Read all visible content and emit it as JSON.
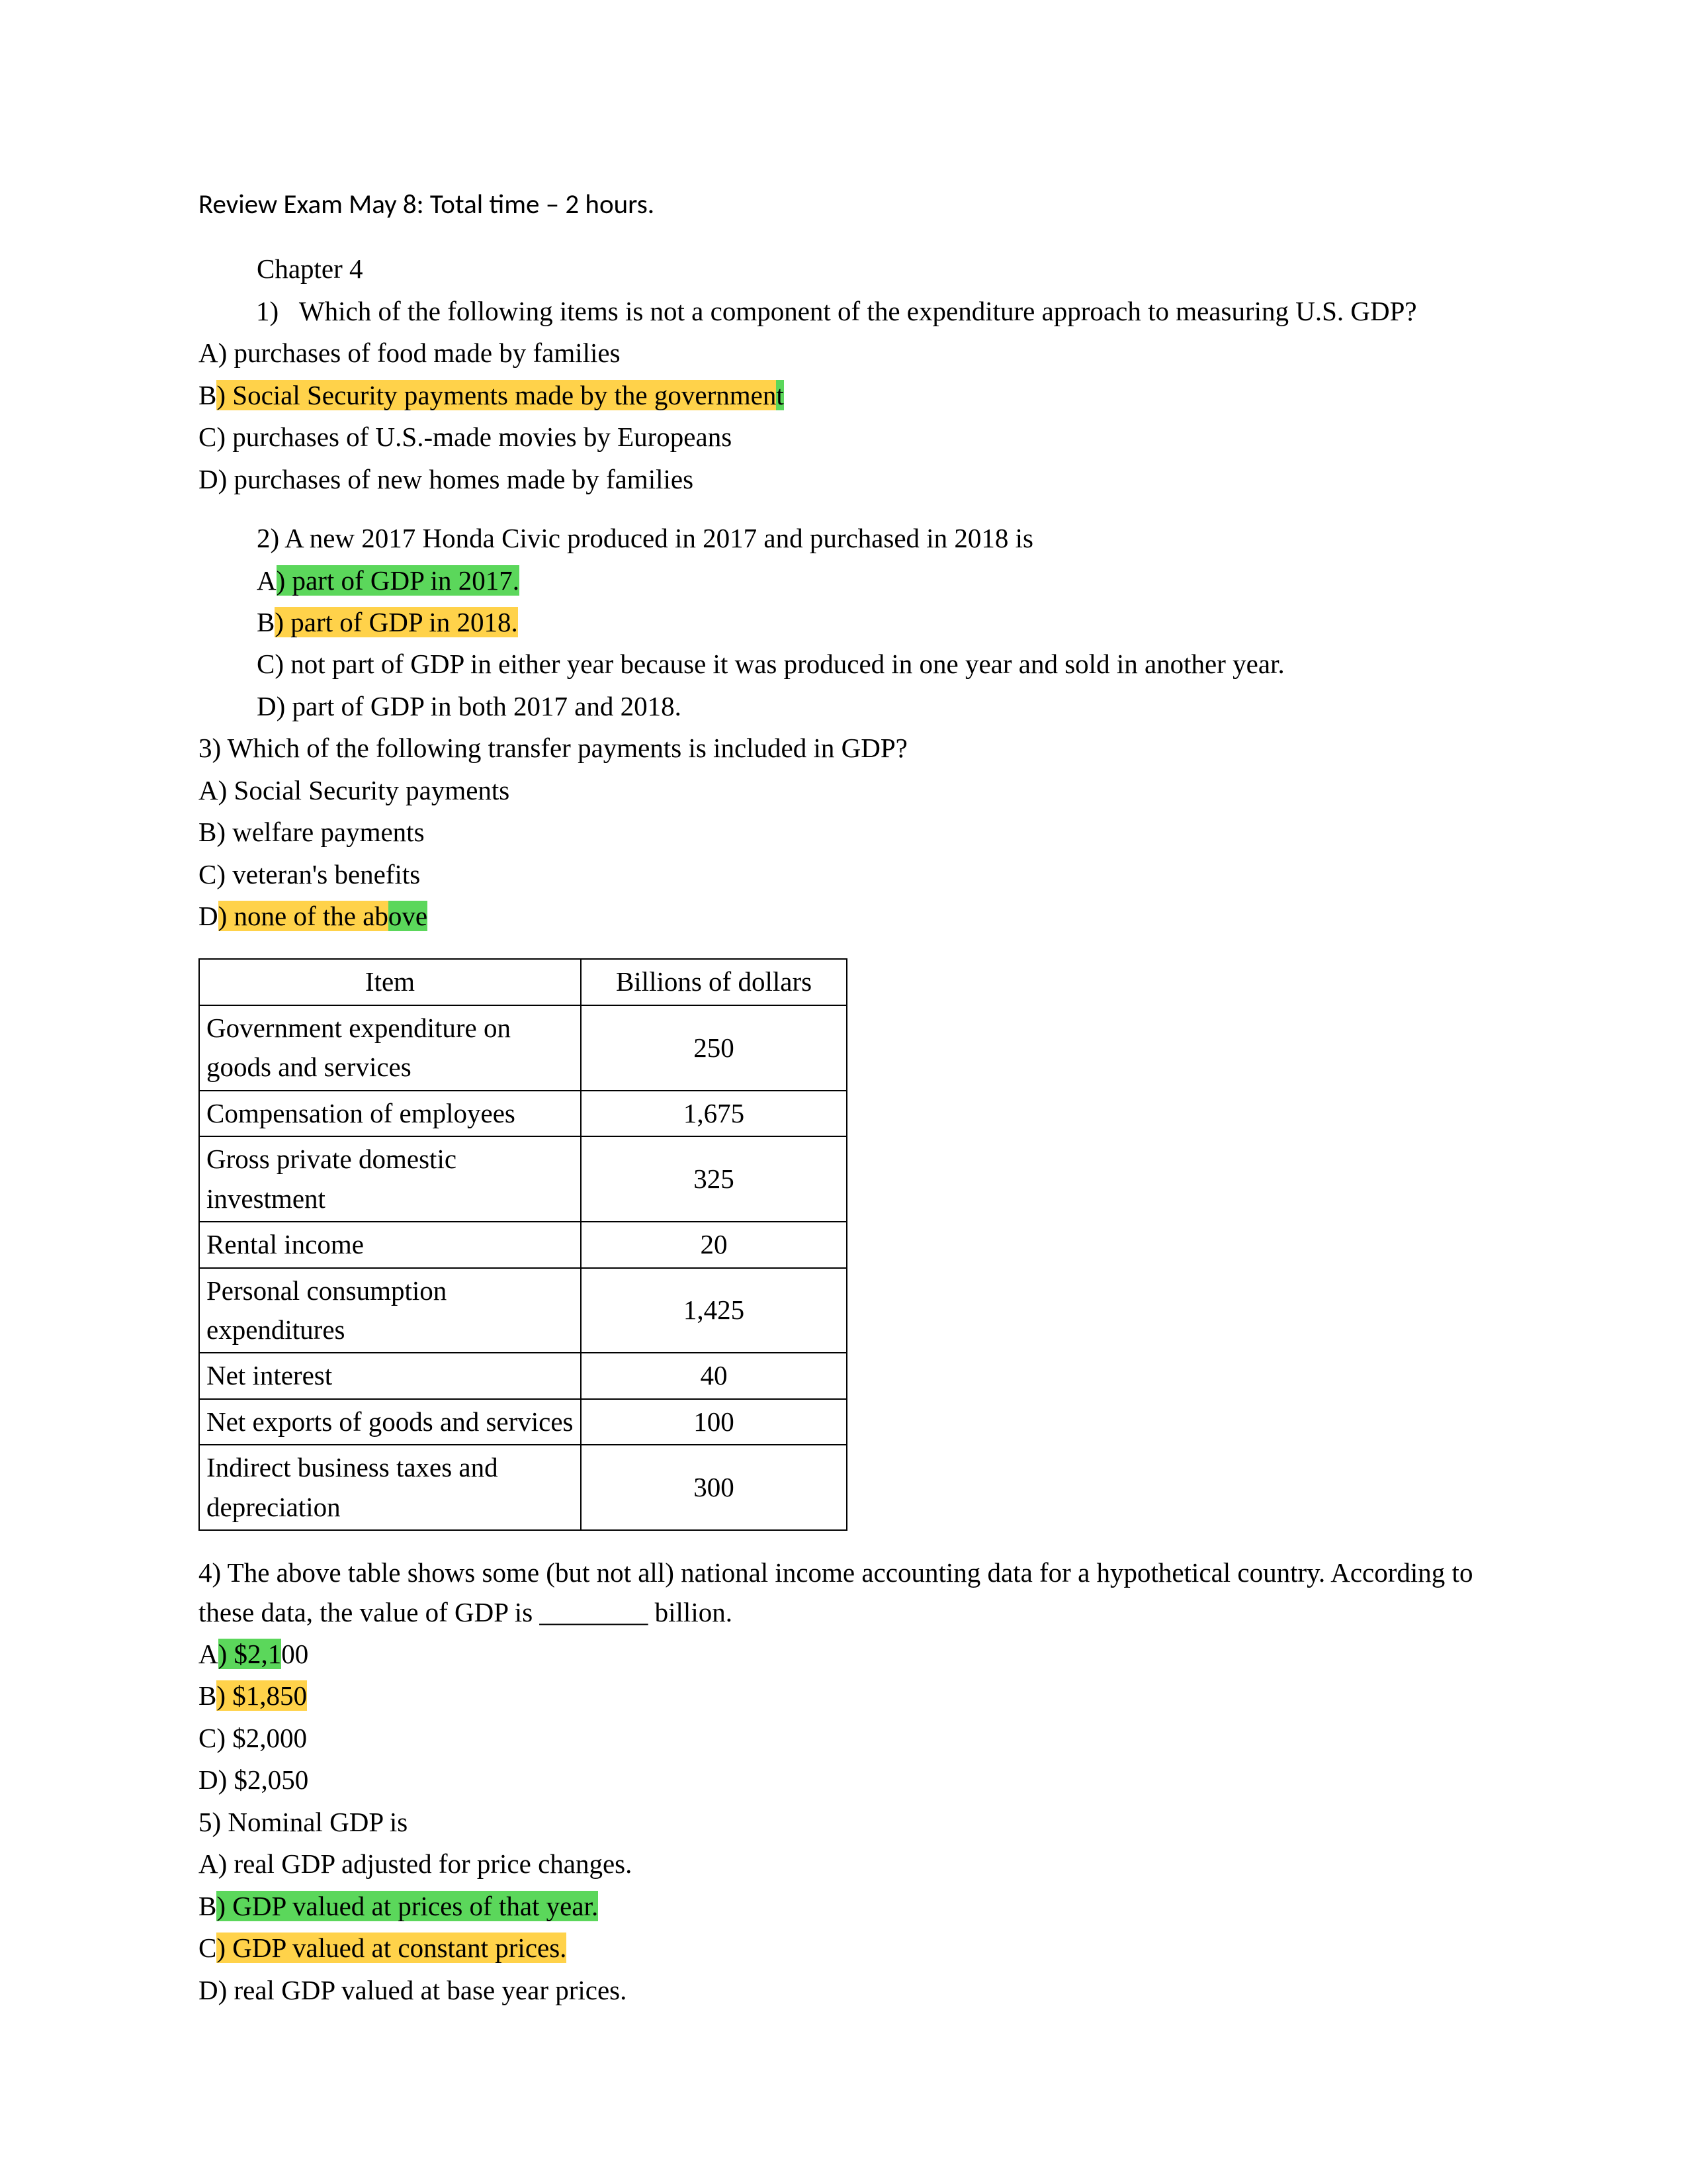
{
  "colors": {
    "text": "#000000",
    "background": "#ffffff",
    "highlight_yellow": "#ffd24a",
    "highlight_green": "#5bd75b",
    "table_border": "#000000"
  },
  "title": "Review Exam May 8: Total time – 2 hours.",
  "chapter": "Chapter 4",
  "q1": {
    "num": "1)",
    "stem": "Which of the following items is not a component of the expenditure approach to measuring U.S. GDP?",
    "a": "A) purchases of food made by families",
    "b_pre": "B",
    "b_hl": ") Social Security payments made by the governmen",
    "b_post": "t",
    "c": "C) purchases of U.S.-made movies by Europeans",
    "d": "D) purchases of new homes made by families"
  },
  "q2": {
    "stem": "2) A new 2017 Honda Civic produced in 2017 and purchased in 2018 is",
    "a_pre": "A",
    "a_hl": ") part of GDP in 2017.",
    "b_pre": "B",
    "b_hl": ") part of GDP in 2018.",
    "c": "C) not part of GDP in either year because it was produced in one year and sold in another year.",
    "d": "D) part of GDP in both 2017 and 2018."
  },
  "q3": {
    "stem": "3) Which of the following transfer payments is included in GDP?",
    "a": "A) Social Security payments",
    "b": "B) welfare payments",
    "c": "C) veteran's benefits",
    "d_pre": "D",
    "d_hl1": ") none of the ab",
    "d_hl2": "ove"
  },
  "table": {
    "header_item": "Item",
    "header_value": "Billions of dollars",
    "rows": [
      {
        "item": "Government expenditure on goods and services",
        "value": "250"
      },
      {
        "item": "Compensation of employees",
        "value": "1,675"
      },
      {
        "item": "Gross private domestic investment",
        "value": "325"
      },
      {
        "item": "Rental income",
        "value": "20"
      },
      {
        "item": "Personal consumption expenditures",
        "value": "1,425"
      },
      {
        "item": "Net interest",
        "value": "40"
      },
      {
        "item": "Net exports of goods and services",
        "value": "100"
      },
      {
        "item": "Indirect business taxes and depreciation",
        "value": "300"
      }
    ]
  },
  "q4": {
    "stem": "4) The above table shows some (but not all) national income accounting data for a hypothetical country. According to these data, the value of GDP is ________ billion.",
    "a_pre": "A",
    "a_hl": ") $2,1",
    "a_post": "00",
    "b_pre": "B",
    "b_hl": ") $1,850",
    "c": "C) $2,000",
    "d": "D) $2,050"
  },
  "q5": {
    "stem": "5) Nominal GDP is",
    "a": "A) real GDP adjusted for price changes.",
    "b_pre": "B",
    "b_hl": ") GDP valued at prices of that year.",
    "c_pre": "C",
    "c_hl": ") GDP valued at constant prices.",
    "d": "D) real GDP valued at base year prices."
  }
}
